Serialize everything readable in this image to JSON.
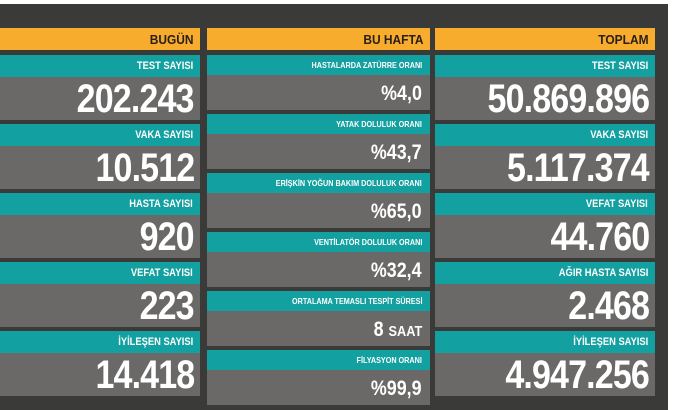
{
  "colors": {
    "header_orange": "#f7ac2e",
    "label_teal": "#13a0a0",
    "value_gray": "#6a6968",
    "background_dark": "#3a3a38"
  },
  "columns": {
    "today": {
      "header": "BUGÜN",
      "items": [
        {
          "label": "TEST SAYISI",
          "value": "202.243"
        },
        {
          "label": "VAKA SAYISI",
          "value": "10.512"
        },
        {
          "label": "HASTA SAYISI",
          "value": "920"
        },
        {
          "label": "VEFAT SAYISI",
          "value": "223"
        },
        {
          "label": "İYİLEŞEN SAYISI",
          "value": "14.418"
        }
      ]
    },
    "this_week": {
      "header": "BU HAFTA",
      "items": [
        {
          "label": "HASTALARDA ZATÜRRE ORANI",
          "value": "%4,0",
          "unit": ""
        },
        {
          "label": "YATAK DOLULUK ORANI",
          "value": "%43,7",
          "unit": ""
        },
        {
          "label": "ERİŞKİN YOĞUN BAKIM DOLULUK ORANI",
          "value": "%65,0",
          "unit": ""
        },
        {
          "label": "VENTİLATÖR DOLULUK ORANI",
          "value": "%32,4",
          "unit": ""
        },
        {
          "label": "ORTALAMA TEMASLI TESPİT SÜRESİ",
          "value": "8",
          "unit": "SAAT"
        },
        {
          "label": "FİLYASYON ORANI",
          "value": "%99,9",
          "unit": ""
        }
      ]
    },
    "total": {
      "header": "TOPLAM",
      "items": [
        {
          "label": "TEST SAYISI",
          "value": "50.869.896"
        },
        {
          "label": "VAKA SAYISI",
          "value": "5.117.374"
        },
        {
          "label": "VEFAT SAYISI",
          "value": "44.760"
        },
        {
          "label": "AĞIR HASTA SAYISI",
          "value": "2.468"
        },
        {
          "label": "İYİLEŞEN SAYISI",
          "value": "4.947.256"
        }
      ]
    }
  }
}
